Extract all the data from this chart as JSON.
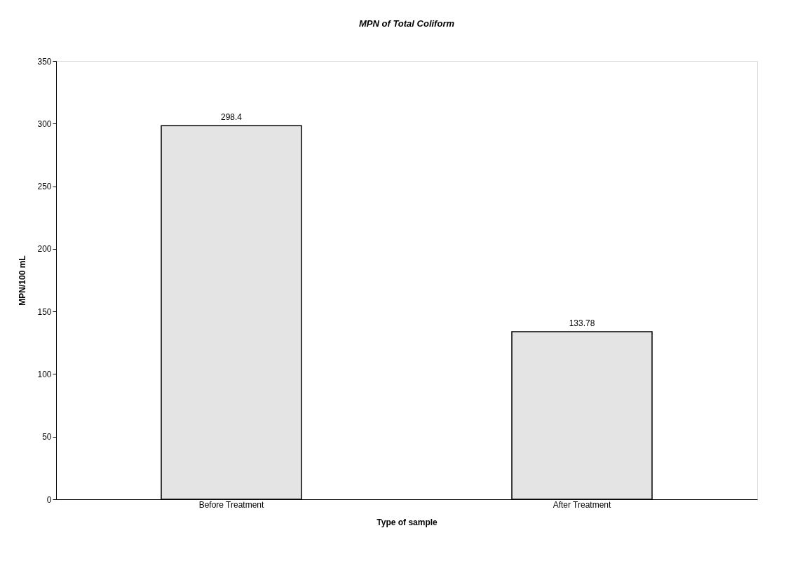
{
  "chart_data": {
    "type": "bar",
    "title": "MPN of Total Coliform",
    "xlabel": "Type of sample",
    "ylabel": "MPN/100 mL",
    "categories": [
      "Before Treatment",
      "After Treatment"
    ],
    "values": [
      298.4,
      133.78
    ],
    "color": "#e4e4e4",
    "ylim": [
      0,
      350
    ],
    "yticks": [
      0,
      50,
      100,
      150,
      200,
      250,
      300,
      350
    ],
    "grid": false,
    "data_labels": true
  }
}
